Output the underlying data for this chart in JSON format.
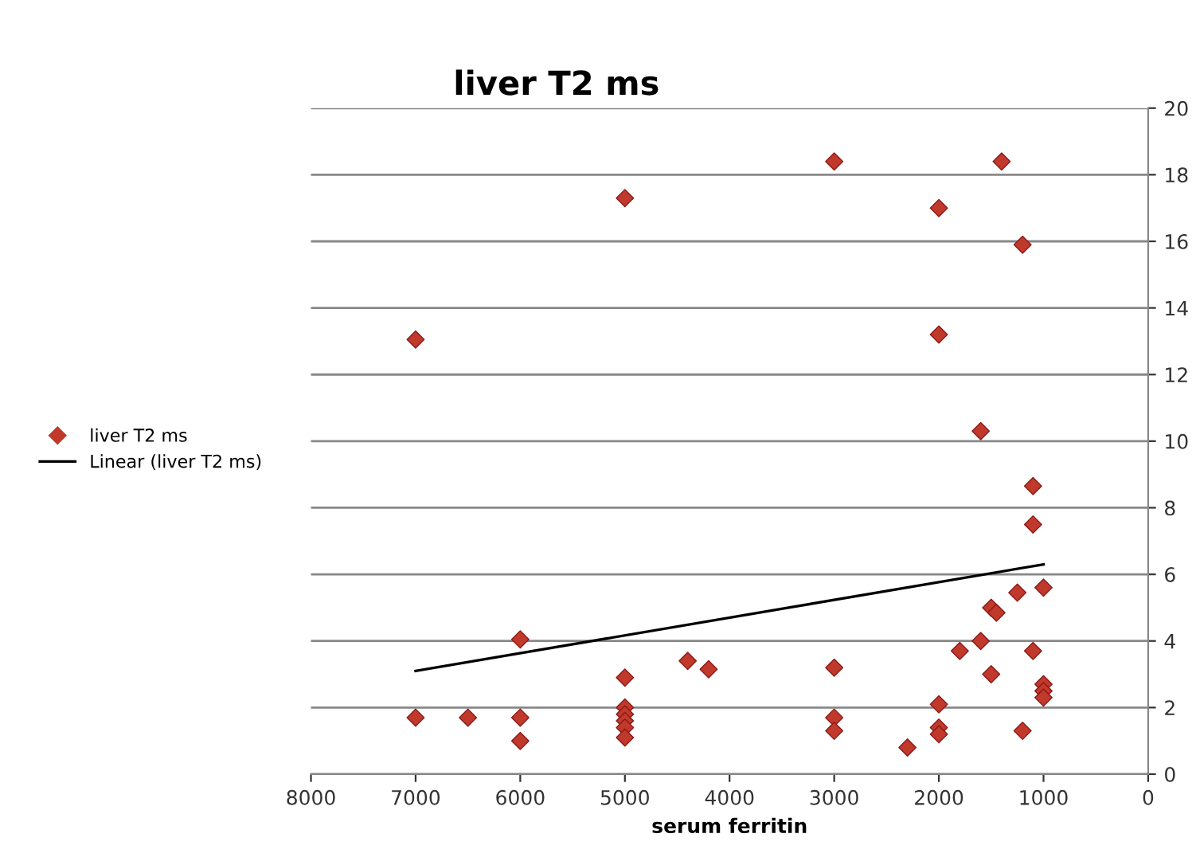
{
  "chart_data": {
    "type": "scatter",
    "title": "liver T2 ms",
    "xlabel": "serum ferritin",
    "xlim": [
      8000,
      0
    ],
    "xticks": [
      8000,
      7000,
      6000,
      5000,
      4000,
      3000,
      2000,
      1000,
      0
    ],
    "ylim": [
      0,
      20
    ],
    "yticks": [
      0,
      2,
      4,
      6,
      8,
      10,
      12,
      14,
      16,
      18,
      20
    ],
    "grid": "y",
    "legend": "left",
    "series": [
      {
        "name": "liver T2 ms",
        "marker": "diamond",
        "color": "#c0392b",
        "x": [
          7000,
          7000,
          6500,
          6000,
          6000,
          6000,
          5000,
          5000,
          5000,
          5000,
          5000,
          5000,
          5000,
          4400,
          4200,
          3000,
          3000,
          3000,
          3000,
          2300,
          2000,
          2000,
          2000,
          2000,
          2000,
          1600,
          1400,
          1200,
          1100,
          1100,
          1000,
          1250,
          1500,
          1450,
          1600,
          1800,
          1100,
          1500,
          1000,
          1000,
          1000,
          1200
        ],
        "values": [
          13.05,
          1.7,
          1.7,
          4.05,
          1.7,
          1.0,
          17.3,
          2.9,
          2.0,
          1.8,
          1.6,
          1.4,
          1.1,
          3.4,
          3.15,
          18.4,
          3.2,
          1.7,
          1.3,
          0.8,
          17.0,
          13.2,
          2.1,
          1.4,
          1.2,
          10.3,
          18.4,
          15.9,
          8.65,
          7.5,
          5.6,
          5.45,
          5.0,
          4.85,
          4.0,
          3.7,
          3.7,
          3.0,
          2.7,
          2.5,
          2.3,
          1.3
        ]
      },
      {
        "name": "Linear (liver T2 ms)",
        "type": "line",
        "color": "#000000",
        "x": [
          7000,
          1000
        ],
        "values": [
          3.1,
          6.3
        ]
      }
    ]
  }
}
